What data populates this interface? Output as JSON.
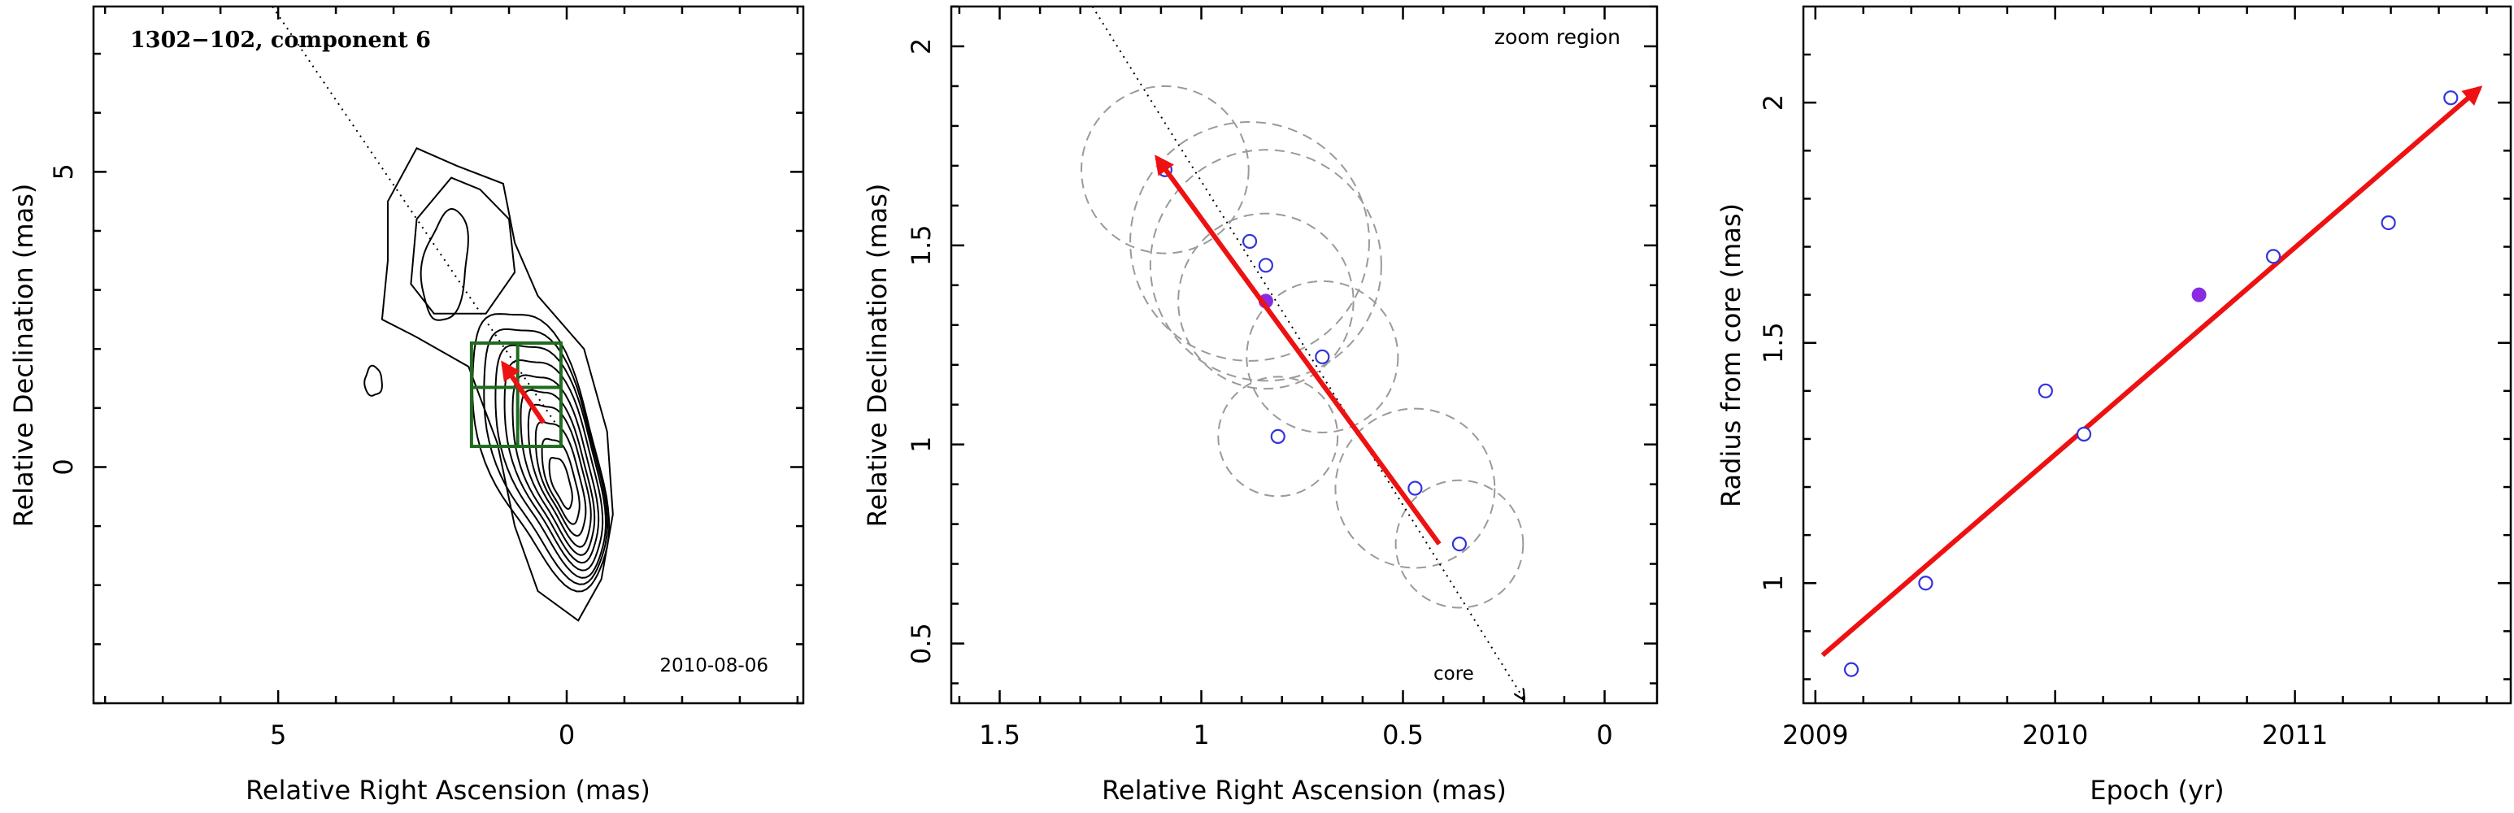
{
  "chart_data": [
    {
      "type": "contour",
      "title": "1302−102, component 6",
      "annotation": "2010-08-06",
      "xlabel": "Relative Right Ascension (mas)",
      "ylabel": "Relative Declination (mas)",
      "xlim": [
        8.2,
        -4.1
      ],
      "ylim": [
        -4.0,
        7.8
      ],
      "xticks": [
        5,
        0
      ],
      "yticks": [
        5,
        0
      ],
      "zoom_box": {
        "ra": [
          1.65,
          0.1
        ],
        "dec": [
          0.35,
          2.1
        ]
      },
      "trajectory": {
        "from": [
          5.1,
          7.8
        ],
        "to": [
          0.2,
          0.75
        ]
      },
      "motion_arrow": {
        "from": [
          0.4,
          0.75
        ],
        "to": [
          1.1,
          1.75
        ]
      }
    },
    {
      "type": "scatter",
      "annotation": "zoom region",
      "core_label": "core",
      "xlabel": "Relative Right Ascension (mas)",
      "ylabel": "Relative Declination (mas)",
      "xlim": [
        1.62,
        -0.13
      ],
      "ylim": [
        0.35,
        2.1
      ],
      "xticks": [
        1.5,
        1,
        0.5,
        0
      ],
      "yticks": [
        0.5,
        1,
        1.5,
        2
      ],
      "points": [
        {
          "x": 1.09,
          "y": 1.69,
          "filled": false,
          "r": 0.21
        },
        {
          "x": 0.88,
          "y": 1.51,
          "filled": false,
          "r": 0.3
        },
        {
          "x": 0.84,
          "y": 1.45,
          "filled": false,
          "r": 0.29
        },
        {
          "x": 0.84,
          "y": 1.36,
          "filled": true,
          "r": 0.22
        },
        {
          "x": 0.7,
          "y": 1.22,
          "filled": false,
          "r": 0.19
        },
        {
          "x": 0.81,
          "y": 1.02,
          "filled": false,
          "r": 0.15
        },
        {
          "x": 0.47,
          "y": 0.89,
          "filled": false,
          "r": 0.2
        },
        {
          "x": 0.36,
          "y": 0.75,
          "filled": false,
          "r": 0.16
        }
      ],
      "trajectory": {
        "from": [
          1.27,
          2.1
        ],
        "to": [
          0.2,
          0.36
        ]
      },
      "motion_arrow": {
        "from": [
          0.41,
          0.75
        ],
        "to": [
          1.11,
          1.72
        ]
      }
    },
    {
      "type": "scatter",
      "xlabel": "Epoch (yr)",
      "ylabel": "Radius from core (mas)",
      "xlim": [
        2008.95,
        2011.9
      ],
      "ylim": [
        0.75,
        2.2
      ],
      "xticks": [
        2009,
        2010,
        2011
      ],
      "yticks": [
        1,
        1.5,
        2
      ],
      "points": [
        {
          "x": 2009.15,
          "y": 0.82,
          "filled": false
        },
        {
          "x": 2009.46,
          "y": 1.0,
          "filled": false
        },
        {
          "x": 2009.96,
          "y": 1.4,
          "filled": false
        },
        {
          "x": 2010.12,
          "y": 1.31,
          "filled": false
        },
        {
          "x": 2010.6,
          "y": 1.6,
          "filled": true
        },
        {
          "x": 2010.91,
          "y": 1.68,
          "filled": false
        },
        {
          "x": 2011.39,
          "y": 1.75,
          "filled": false
        },
        {
          "x": 2011.65,
          "y": 2.01,
          "filled": false
        }
      ],
      "fit_arrow": {
        "from": [
          2009.03,
          0.85
        ],
        "to": [
          2011.77,
          2.03
        ]
      }
    }
  ]
}
